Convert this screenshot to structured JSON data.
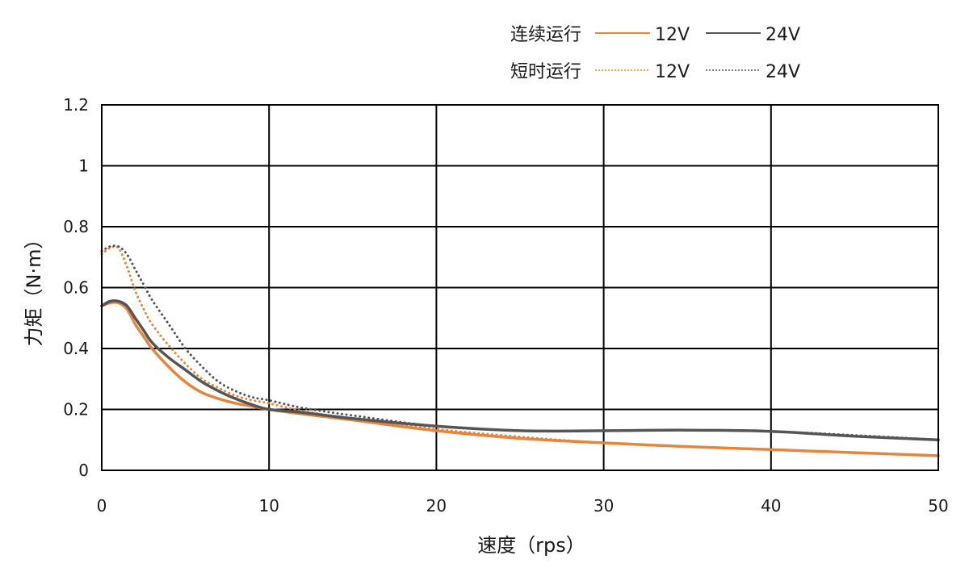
{
  "chart_data": {
    "type": "line",
    "xlabel": "速度（rps）",
    "ylabel": "力矩（N·m）",
    "xlim": [
      0,
      50
    ],
    "ylim": [
      0,
      1.2
    ],
    "x_ticks": [
      "0",
      "10",
      "20",
      "30",
      "40",
      "50"
    ],
    "y_ticks": [
      "0",
      "0.2",
      "0.4",
      "0.6",
      "0.8",
      "1",
      "1.2"
    ],
    "grid": true,
    "legend_position": "top-right",
    "legend": {
      "group_labels": [
        "连续运行",
        "短时运行"
      ]
    },
    "series": [
      {
        "name": "12V",
        "group": "连续运行",
        "style": "solid",
        "color": "#E8853A",
        "x": [
          0,
          0.5,
          1,
          1.5,
          2,
          2.5,
          3,
          4,
          5,
          6,
          7,
          8,
          9,
          10,
          12,
          15,
          20,
          25,
          30,
          35,
          40,
          45,
          50
        ],
        "y": [
          0.54,
          0.55,
          0.55,
          0.53,
          0.48,
          0.44,
          0.4,
          0.34,
          0.29,
          0.255,
          0.235,
          0.22,
          0.21,
          0.2,
          0.185,
          0.165,
          0.13,
          0.105,
          0.09,
          0.078,
          0.068,
          0.058,
          0.048
        ]
      },
      {
        "name": "24V",
        "group": "连续运行",
        "style": "solid",
        "color": "#555555",
        "x": [
          0,
          0.5,
          1,
          1.5,
          2,
          2.5,
          3,
          4,
          5,
          6,
          7,
          8,
          9,
          10,
          12,
          15,
          20,
          25,
          30,
          35,
          40,
          45,
          50
        ],
        "y": [
          0.54,
          0.555,
          0.555,
          0.54,
          0.5,
          0.46,
          0.42,
          0.37,
          0.33,
          0.29,
          0.26,
          0.235,
          0.215,
          0.2,
          0.19,
          0.17,
          0.145,
          0.13,
          0.13,
          0.132,
          0.128,
          0.112,
          0.1
        ]
      },
      {
        "name": "12V",
        "group": "短时运行",
        "style": "dotted",
        "color": "#E8853A",
        "x": [
          0,
          0.5,
          1,
          1.5,
          2,
          2.5,
          3,
          4,
          5,
          6,
          7,
          8,
          9,
          10,
          12,
          15,
          20,
          25,
          30,
          35,
          40,
          45,
          50
        ],
        "y": [
          0.71,
          0.73,
          0.73,
          0.67,
          0.59,
          0.53,
          0.48,
          0.41,
          0.35,
          0.3,
          0.27,
          0.245,
          0.23,
          0.22,
          0.195,
          0.17,
          0.135,
          0.11,
          0.09,
          0.078,
          0.068,
          0.058,
          0.048
        ]
      },
      {
        "name": "24V",
        "group": "短时运行",
        "style": "dotted",
        "color": "#555555",
        "x": [
          0,
          0.5,
          1,
          1.5,
          2,
          2.5,
          3,
          4,
          5,
          6,
          7,
          8,
          9,
          10,
          12,
          15,
          20,
          25,
          30,
          35,
          40,
          45,
          50
        ],
        "y": [
          0.72,
          0.735,
          0.735,
          0.71,
          0.66,
          0.61,
          0.56,
          0.48,
          0.4,
          0.34,
          0.29,
          0.26,
          0.24,
          0.23,
          0.205,
          0.18,
          0.145,
          0.13,
          0.13,
          0.132,
          0.128,
          0.115,
          0.1
        ]
      }
    ]
  }
}
